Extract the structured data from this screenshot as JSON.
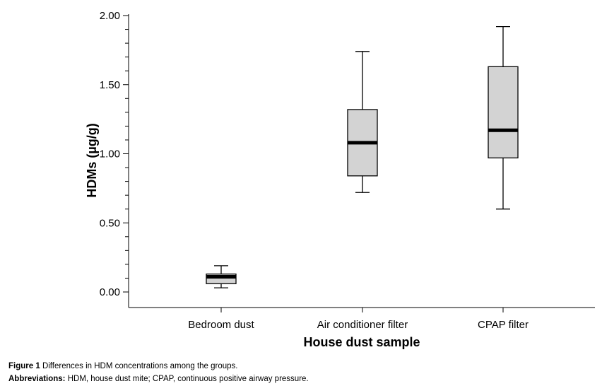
{
  "chart_data": {
    "type": "box",
    "xlabel": "House dust sample",
    "ylabel": "HDMs (µg/g)",
    "ylim": [
      -0.11,
      2.02
    ],
    "yticks": [
      "0.00",
      "0.50",
      "1.00",
      "1.50",
      "2.00"
    ],
    "ytick_values": [
      0,
      0.5,
      1.0,
      1.5,
      2.0
    ],
    "grid": false,
    "categories": [
      "Bedroom dust",
      "Air conditioner filter",
      "CPAP filter"
    ],
    "boxes": [
      {
        "category": "Bedroom dust",
        "min": 0.03,
        "q1": 0.06,
        "median": 0.11,
        "q3": 0.13,
        "max": 0.19
      },
      {
        "category": "Air conditioner filter",
        "min": 0.72,
        "q1": 0.84,
        "median": 1.08,
        "q3": 1.32,
        "max": 1.74
      },
      {
        "category": "CPAP filter",
        "min": 0.6,
        "q1": 0.97,
        "median": 1.17,
        "q3": 1.63,
        "max": 1.92
      }
    ],
    "colors": {
      "box_fill": "#d3d3d3",
      "stroke": "#000000"
    }
  },
  "caption": {
    "figure_label": "Figure 1",
    "figure_text": "Differences in HDM concentrations among the groups.",
    "abbrev_label": "Abbreviations:",
    "abbrev_text": "HDM, house dust mite; CPAP, continuous positive airway pressure."
  }
}
